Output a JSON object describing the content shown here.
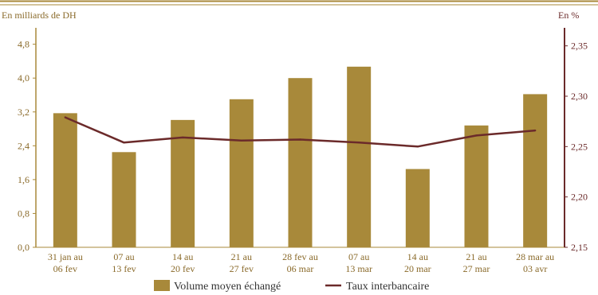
{
  "chart_data": {
    "type": "bar",
    "y_left_label": "En milliards de DH",
    "y_right_label": "En %",
    "categories": [
      [
        "31 jan au",
        "06 fev"
      ],
      [
        "07 au",
        "13 fev"
      ],
      [
        "14 au",
        "20 fev"
      ],
      [
        "21 au",
        "27 fev"
      ],
      [
        "28 fev au",
        "06 mar"
      ],
      [
        "07 au",
        "13 mar"
      ],
      [
        "14 au",
        "20 mar"
      ],
      [
        "21 au",
        "27 mar"
      ],
      [
        "28 mar au",
        "03 avr"
      ]
    ],
    "y_left_ticks": [
      "0,0",
      "0,8",
      "1,6",
      "2,4",
      "3,2",
      "4,0",
      "4,8"
    ],
    "y_left_lim": [
      0,
      5.0
    ],
    "y_right_ticks": [
      "2,15",
      "2,20",
      "2,25",
      "2,30",
      "2,35"
    ],
    "y_right_lim": [
      2.15,
      2.36
    ],
    "series": [
      {
        "name": "Volume moyen échangé",
        "kind": "bar",
        "axis": "left",
        "color": "#a8893a",
        "values": [
          3.17,
          2.25,
          3.01,
          3.5,
          4.0,
          4.27,
          1.85,
          2.88,
          3.62
        ]
      },
      {
        "name": "Taux interbancaire",
        "kind": "line",
        "axis": "right",
        "color": "#6b2a2a",
        "values": [
          2.279,
          2.254,
          2.259,
          2.256,
          2.257,
          2.254,
          2.25,
          2.261,
          2.266
        ]
      }
    ],
    "legend_position": "bottom-center",
    "grid": false
  }
}
